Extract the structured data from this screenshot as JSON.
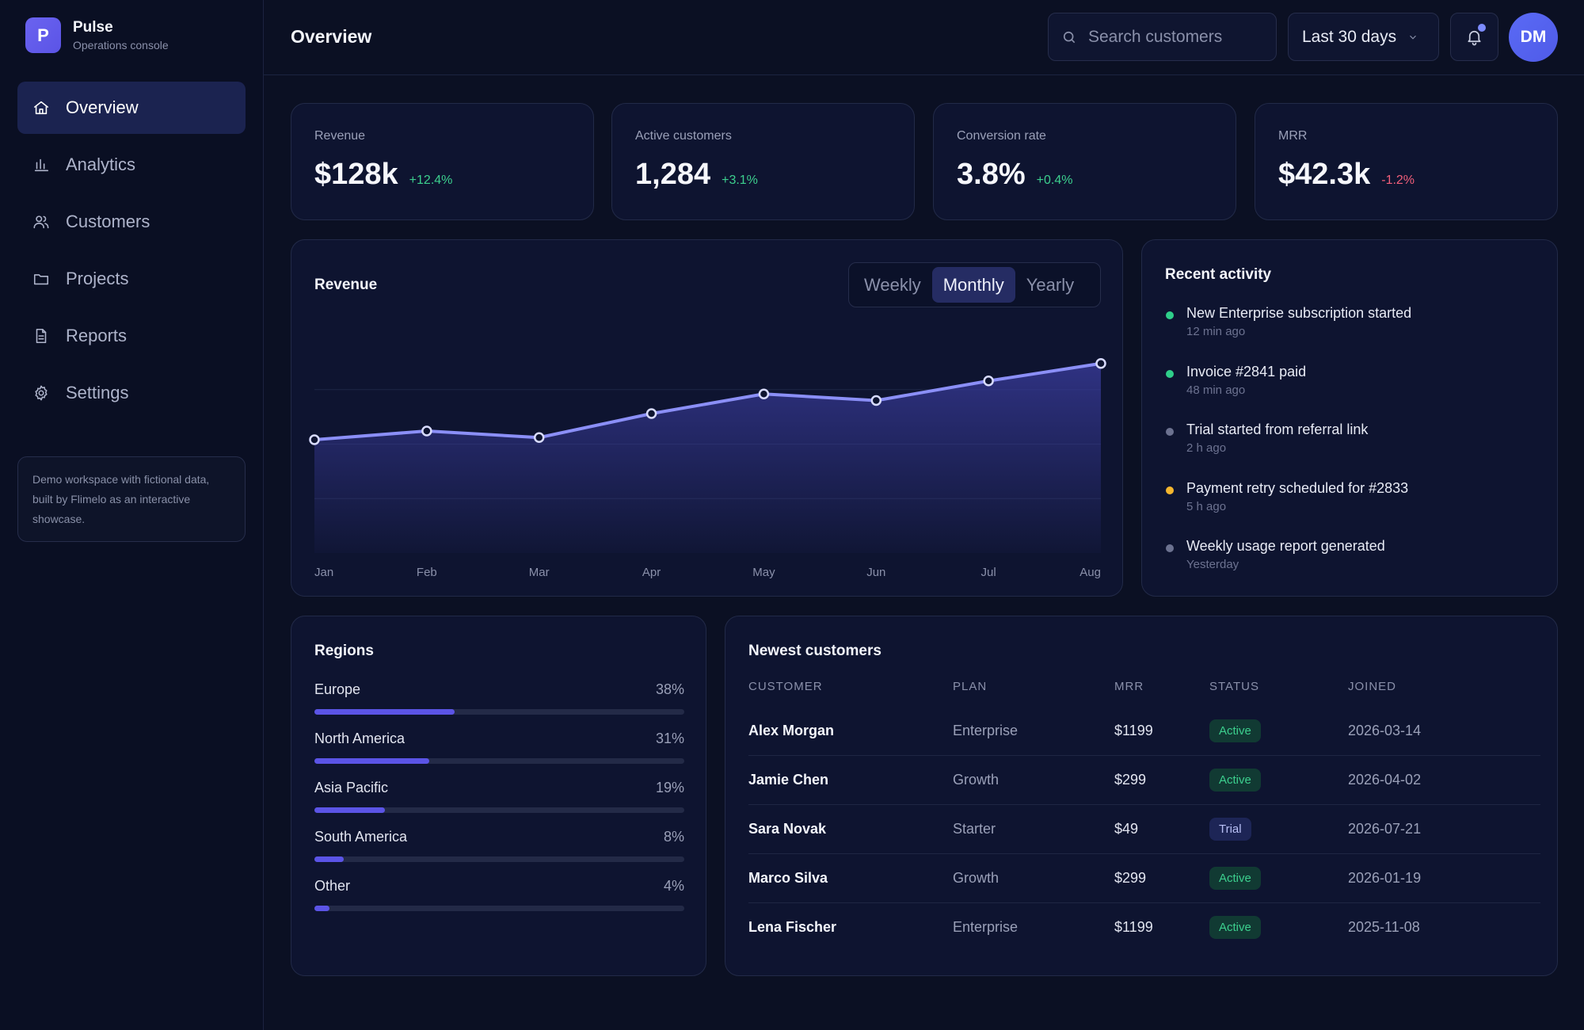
{
  "brand": {
    "logo_letter": "P",
    "name": "Pulse",
    "subtitle": "Operations console"
  },
  "nav": [
    {
      "label": "Overview",
      "icon": "home-icon",
      "active": true
    },
    {
      "label": "Analytics",
      "icon": "bar-chart-icon",
      "active": false
    },
    {
      "label": "Customers",
      "icon": "users-icon",
      "active": false
    },
    {
      "label": "Projects",
      "icon": "folder-icon",
      "active": false
    },
    {
      "label": "Reports",
      "icon": "document-icon",
      "active": false
    },
    {
      "label": "Settings",
      "icon": "gear-icon",
      "active": false
    }
  ],
  "demo_note": "Demo workspace with fictional data, built by Flimelo as an interactive showcase.",
  "header": {
    "title": "Overview",
    "search_placeholder": "Search customers",
    "date_range": "Last 30 days",
    "avatar_initials": "DM"
  },
  "kpis": [
    {
      "label": "Revenue",
      "value": "$128k",
      "delta": "+12.4%",
      "trend": "up"
    },
    {
      "label": "Active customers",
      "value": "1,284",
      "delta": "+3.1%",
      "trend": "up"
    },
    {
      "label": "Conversion rate",
      "value": "3.8%",
      "delta": "+0.4%",
      "trend": "up"
    },
    {
      "label": "MRR",
      "value": "$42.3k",
      "delta": "-1.2%",
      "trend": "down"
    }
  ],
  "revenue_panel": {
    "title": "Revenue",
    "periods": [
      "Weekly",
      "Monthly",
      "Yearly"
    ],
    "selected_period": "Monthly"
  },
  "chart_data": {
    "type": "area",
    "title": "Revenue",
    "categories": [
      "Jan",
      "Feb",
      "Mar",
      "Apr",
      "May",
      "Jun",
      "Jul",
      "Aug"
    ],
    "series": [
      {
        "values": [
          52,
          56,
          53,
          64,
          73,
          70,
          79,
          87
        ]
      }
    ],
    "ylim": [
      0,
      100
    ],
    "grid": true,
    "colors": {
      "line": "#8b8ff7",
      "fill": "#3a3c9e"
    }
  },
  "activity": {
    "title": "Recent activity",
    "items": [
      {
        "title": "New Enterprise subscription started",
        "time": "12 min ago",
        "color": "#2fcf8a"
      },
      {
        "title": "Invoice #2841 paid",
        "time": "48 min ago",
        "color": "#2fcf8a"
      },
      {
        "title": "Trial started from referral link",
        "time": "2 h ago",
        "color": "#6c7290"
      },
      {
        "title": "Payment retry scheduled for #2833",
        "time": "5 h ago",
        "color": "#f5b62e"
      },
      {
        "title": "Weekly usage report generated",
        "time": "Yesterday",
        "color": "#6c7290"
      }
    ]
  },
  "regions": {
    "title": "Regions",
    "items": [
      {
        "name": "Europe",
        "pct_label": "38%",
        "value": 38
      },
      {
        "name": "North America",
        "pct_label": "31%",
        "value": 31
      },
      {
        "name": "Asia Pacific",
        "pct_label": "19%",
        "value": 19
      },
      {
        "name": "South America",
        "pct_label": "8%",
        "value": 8
      },
      {
        "name": "Other",
        "pct_label": "4%",
        "value": 4
      }
    ]
  },
  "customers_table": {
    "title": "Newest customers",
    "columns": [
      "CUSTOMER",
      "PLAN",
      "MRR",
      "STATUS",
      "JOINED"
    ],
    "rows": [
      {
        "customer": "Alex Morgan",
        "plan": "Enterprise",
        "mrr": "$1199",
        "status": "Active",
        "joined": "2026-03-14"
      },
      {
        "customer": "Jamie Chen",
        "plan": "Growth",
        "mrr": "$299",
        "status": "Active",
        "joined": "2026-04-02"
      },
      {
        "customer": "Sara Novak",
        "plan": "Starter",
        "mrr": "$49",
        "status": "Trial",
        "joined": "2026-07-21"
      },
      {
        "customer": "Marco Silva",
        "plan": "Growth",
        "mrr": "$299",
        "status": "Active",
        "joined": "2026-01-19"
      },
      {
        "customer": "Lena Fischer",
        "plan": "Enterprise",
        "mrr": "$1199",
        "status": "Active",
        "joined": "2025-11-08"
      }
    ]
  }
}
